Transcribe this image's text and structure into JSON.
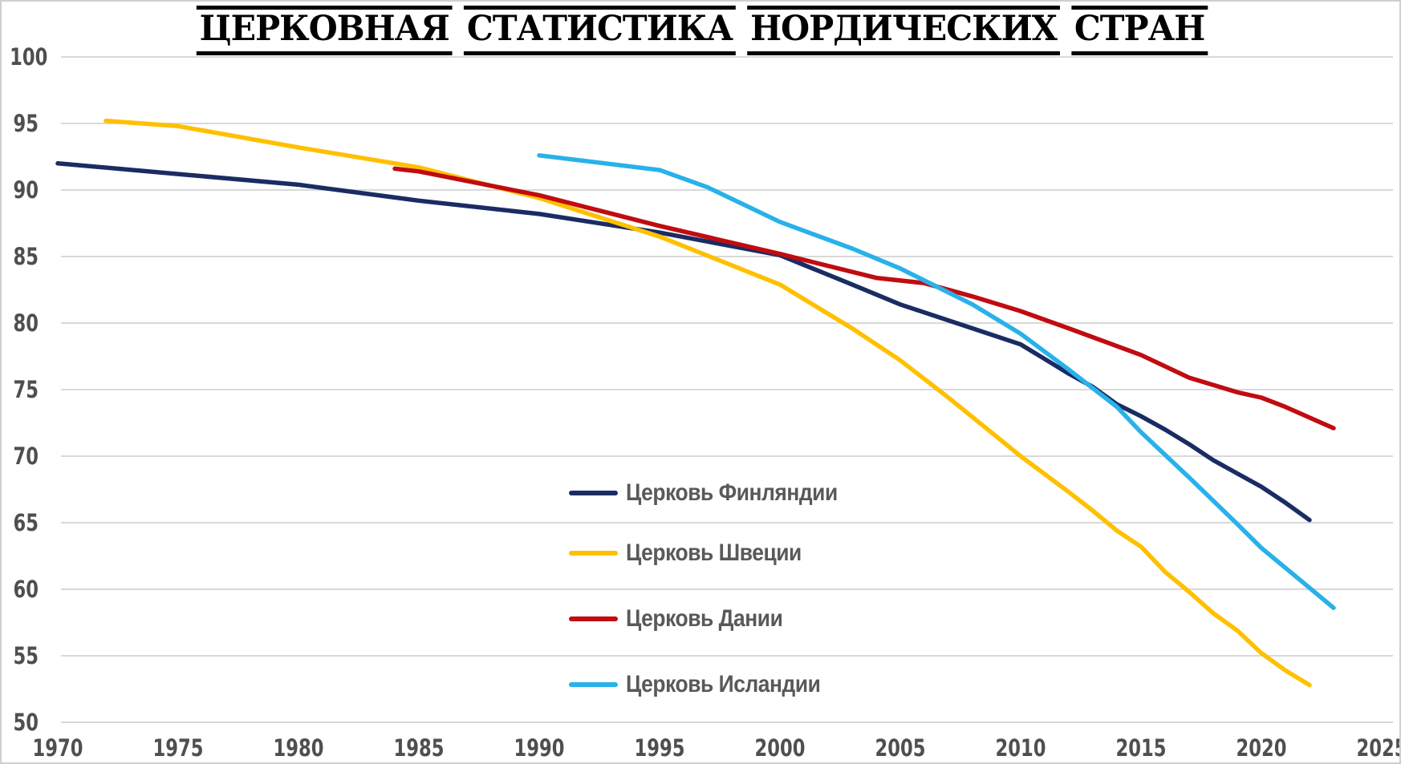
{
  "title": {
    "text": "ЦЕРКОВНАЯ СТАТИСТИКА НОРДИЧЕСКИХ СТРАН",
    "words": [
      "ЦЕРКОВНАЯ",
      "СТАТИСТИКА",
      "НОРДИЧЕСКИХ",
      "СТРАН"
    ]
  },
  "colors": {
    "background": "#ffffff",
    "frame_border": "#cfcfcf",
    "gridline": "#d9d9d9",
    "tick_label": "#4f4f4f",
    "legend_label": "#595959",
    "title_text": "#000000"
  },
  "chart_data": {
    "type": "line",
    "title": "ЦЕРКОВНАЯ СТАТИСТИКА НОРДИЧЕСКИХ СТРАН",
    "xlabel": "",
    "ylabel": "",
    "xlim": [
      1970,
      2025
    ],
    "ylim": [
      50,
      100
    ],
    "xticks": [
      1970,
      1975,
      1980,
      1985,
      1990,
      1995,
      2000,
      2005,
      2010,
      2015,
      2020,
      2025
    ],
    "yticks": [
      100,
      95,
      90,
      85,
      80,
      75,
      70,
      65,
      60,
      55,
      50
    ],
    "grid": "horizontal-only",
    "legend_position": "center-right-inside",
    "series": [
      {
        "name": "Церковь Финляндии",
        "slug": "finland",
        "color": "#1A2C63",
        "points": [
          [
            1970,
            92.0
          ],
          [
            1975,
            91.2
          ],
          [
            1980,
            90.4
          ],
          [
            1985,
            89.2
          ],
          [
            1990,
            88.2
          ],
          [
            1995,
            86.8
          ],
          [
            2000,
            85.1
          ],
          [
            2003,
            82.9
          ],
          [
            2005,
            81.4
          ],
          [
            2008,
            79.6
          ],
          [
            2010,
            78.4
          ],
          [
            2011,
            77.3
          ],
          [
            2012,
            76.2
          ],
          [
            2013,
            75.2
          ],
          [
            2014,
            73.9
          ],
          [
            2015,
            73.0
          ],
          [
            2016,
            72.0
          ],
          [
            2017,
            70.9
          ],
          [
            2018,
            69.7
          ],
          [
            2019,
            68.7
          ],
          [
            2020,
            67.7
          ],
          [
            2021,
            66.5
          ],
          [
            2022,
            65.2
          ]
        ]
      },
      {
        "name": "Церковь Швеции",
        "slug": "sweden",
        "color": "#FFC000",
        "points": [
          [
            1972,
            95.2
          ],
          [
            1975,
            94.8
          ],
          [
            1980,
            93.2
          ],
          [
            1985,
            91.7
          ],
          [
            1990,
            89.4
          ],
          [
            1995,
            86.5
          ],
          [
            2000,
            82.9
          ],
          [
            2003,
            79.6
          ],
          [
            2005,
            77.2
          ],
          [
            2007,
            74.4
          ],
          [
            2010,
            70.0
          ],
          [
            2012,
            67.3
          ],
          [
            2013,
            65.9
          ],
          [
            2014,
            64.4
          ],
          [
            2015,
            63.2
          ],
          [
            2016,
            61.3
          ],
          [
            2017,
            59.8
          ],
          [
            2018,
            58.2
          ],
          [
            2019,
            56.9
          ],
          [
            2020,
            55.2
          ],
          [
            2021,
            53.9
          ],
          [
            2022,
            52.8
          ]
        ]
      },
      {
        "name": "Церковь Дании",
        "slug": "denmark",
        "color": "#C00C11",
        "points": [
          [
            1984,
            91.6
          ],
          [
            1985,
            91.4
          ],
          [
            1990,
            89.6
          ],
          [
            1995,
            87.3
          ],
          [
            2000,
            85.2
          ],
          [
            2004,
            83.4
          ],
          [
            2006,
            83.0
          ],
          [
            2008,
            82.0
          ],
          [
            2010,
            80.9
          ],
          [
            2012,
            79.6
          ],
          [
            2015,
            77.6
          ],
          [
            2017,
            75.9
          ],
          [
            2019,
            74.8
          ],
          [
            2020,
            74.4
          ],
          [
            2021,
            73.7
          ],
          [
            2022,
            72.9
          ],
          [
            2023,
            72.1
          ]
        ]
      },
      {
        "name": "Церковь Исландии",
        "slug": "iceland",
        "color": "#29B1E9",
        "points": [
          [
            1990,
            92.6
          ],
          [
            1995,
            91.5
          ],
          [
            1997,
            90.2
          ],
          [
            2000,
            87.6
          ],
          [
            2003,
            85.6
          ],
          [
            2005,
            84.1
          ],
          [
            2008,
            81.4
          ],
          [
            2010,
            79.2
          ],
          [
            2012,
            76.5
          ],
          [
            2014,
            73.7
          ],
          [
            2015,
            71.8
          ],
          [
            2017,
            68.4
          ],
          [
            2019,
            64.9
          ],
          [
            2020,
            63.1
          ],
          [
            2021,
            61.6
          ],
          [
            2022,
            60.1
          ],
          [
            2023,
            58.6
          ]
        ]
      }
    ]
  }
}
